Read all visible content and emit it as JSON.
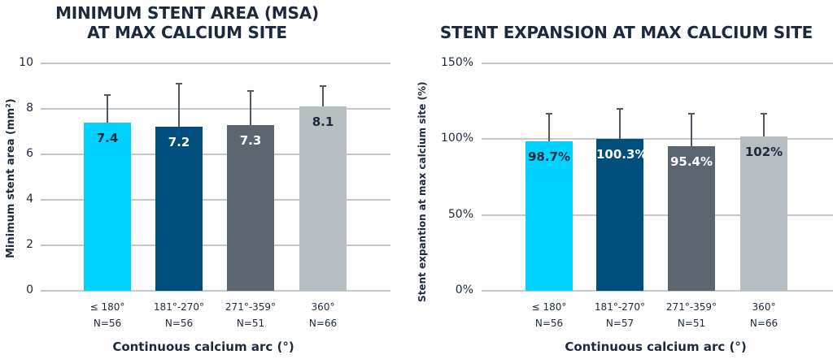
{
  "chart_data": [
    {
      "type": "bar",
      "title": "MINIMUM STENT AREA (MSA) AT MAX CALCIUM SITE",
      "title_lines": [
        "MINIMUM STENT AREA (MSA)",
        "AT MAX CALCIUM SITE"
      ],
      "xlabel": "Continuous calcium arc (°)",
      "ylabel": "Minimum stent area (mm²)",
      "ylim": [
        0,
        10
      ],
      "yticks": [
        "0",
        "2",
        "4",
        "6",
        "8",
        "10"
      ],
      "categories": [
        "≤ 180°",
        "181°-270°",
        "271°-359°",
        "360°"
      ],
      "n_labels": [
        "N=56",
        "N=56",
        "N=51",
        "N=66"
      ],
      "values": [
        7.4,
        7.2,
        7.3,
        8.1
      ],
      "value_labels": [
        "7.4",
        "7.2",
        "7.3",
        "8.1"
      ],
      "error_upper": [
        8.6,
        9.1,
        8.8,
        9.0
      ],
      "colors": [
        "#00d2ff",
        "#004e7c",
        "#5a6570",
        "#b7bec1"
      ],
      "label_colors": [
        "#1d2a3e",
        "#ffffff",
        "#ffffff",
        "#1d2a3e"
      ],
      "grid": true
    },
    {
      "type": "bar",
      "title": "STENT EXPANSION AT MAX CALCIUM SITE",
      "xlabel": "Continuous calcium arc (°)",
      "ylabel": "Stent expantion at max calcium site (%)",
      "ylim": [
        0,
        150
      ],
      "yticks": [
        "0%",
        "50%",
        "100%",
        "150%"
      ],
      "categories": [
        "≤ 180°",
        "181°-270°",
        "271°-359°",
        "360°"
      ],
      "n_labels": [
        "N=56",
        "N=57",
        "N=51",
        "N=66"
      ],
      "values": [
        98.7,
        100.3,
        95.4,
        102
      ],
      "value_labels": [
        "98.7%",
        "100.3%",
        "95.4%",
        "102%"
      ],
      "error_upper": [
        117,
        120,
        117,
        117
      ],
      "colors": [
        "#00d2ff",
        "#004e7c",
        "#5a6570",
        "#b7bec1"
      ],
      "label_colors": [
        "#1d2a3e",
        "#ffffff",
        "#ffffff",
        "#1d2a3e"
      ],
      "grid": true
    }
  ]
}
